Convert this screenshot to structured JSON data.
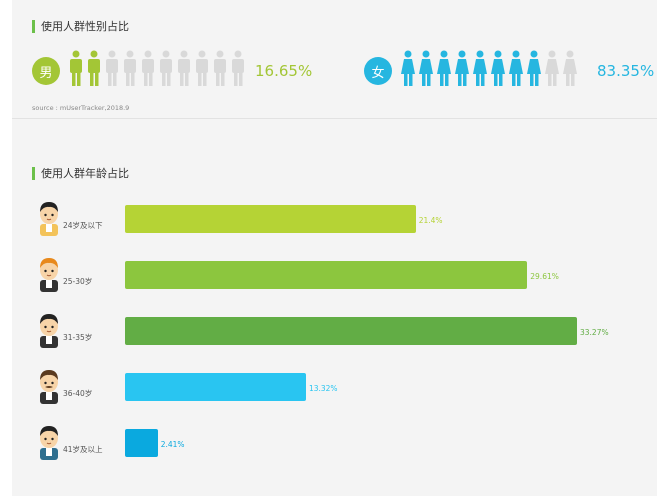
{
  "gender_section": {
    "title": "使用人群性别占比",
    "male": {
      "label": "男",
      "percent_text": "16.65%",
      "percent": 16.65,
      "icons_total": 10,
      "color": "#a3c636"
    },
    "female": {
      "label": "女",
      "percent_text": "83.35%",
      "percent": 83.35,
      "icons_total": 10,
      "color": "#26b6e0"
    },
    "inactive_color": "#d9d9d9",
    "source": "source : mUserTracker,2018.9"
  },
  "age_section": {
    "title": "使用人群年龄占比"
  },
  "chart_data": {
    "type": "bar",
    "orientation": "horizontal",
    "categories": [
      "24岁及以下",
      "25-30岁",
      "31-35岁",
      "36-40岁",
      "41岁及以上"
    ],
    "values": [
      21.4,
      29.61,
      33.27,
      13.32,
      2.41
    ],
    "value_labels": [
      "21.4%",
      "29.61%",
      "33.27%",
      "13.32%",
      "2.41%"
    ],
    "colors": [
      "#b5d335",
      "#8cc63e",
      "#62ad45",
      "#29c5f1",
      "#0aa9df"
    ],
    "avatar_icons": [
      "young-person-icon",
      "orange-hair-man-icon",
      "suit-man-icon",
      "mustache-man-icon",
      "older-man-icon"
    ]
  }
}
